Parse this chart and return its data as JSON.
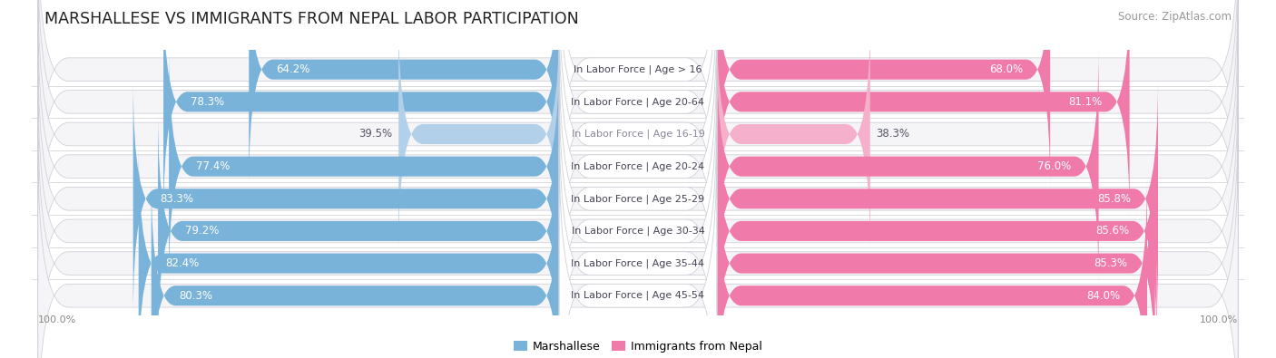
{
  "title": "MARSHALLESE VS IMMIGRANTS FROM NEPAL LABOR PARTICIPATION",
  "source": "Source: ZipAtlas.com",
  "categories": [
    "In Labor Force | Age > 16",
    "In Labor Force | Age 20-64",
    "In Labor Force | Age 16-19",
    "In Labor Force | Age 20-24",
    "In Labor Force | Age 25-29",
    "In Labor Force | Age 30-34",
    "In Labor Force | Age 35-44",
    "In Labor Force | Age 45-54"
  ],
  "marshallese_values": [
    64.2,
    78.3,
    39.5,
    77.4,
    83.3,
    79.2,
    82.4,
    80.3
  ],
  "nepal_values": [
    68.0,
    81.1,
    38.3,
    76.0,
    85.8,
    85.6,
    85.3,
    84.0
  ],
  "marshallese_color": "#7ab3d9",
  "marshallese_color_light": "#b3d0ea",
  "nepal_color": "#f07aaa",
  "nepal_color_light": "#f5b0cb",
  "row_bg_color": "#e8e8ec",
  "pill_bg_color": "#f5f5f8",
  "max_value": 100.0,
  "legend_marshallese": "Marshallese",
  "legend_nepal": "Immigrants from Nepal",
  "title_fontsize": 12.5,
  "source_fontsize": 8.5,
  "bar_label_fontsize": 8.5,
  "category_fontsize": 8.0,
  "axis_label_fontsize": 8.0,
  "legend_fontsize": 9.0,
  "center_label_color_dark": "#444455",
  "center_label_color_light": "#888899"
}
